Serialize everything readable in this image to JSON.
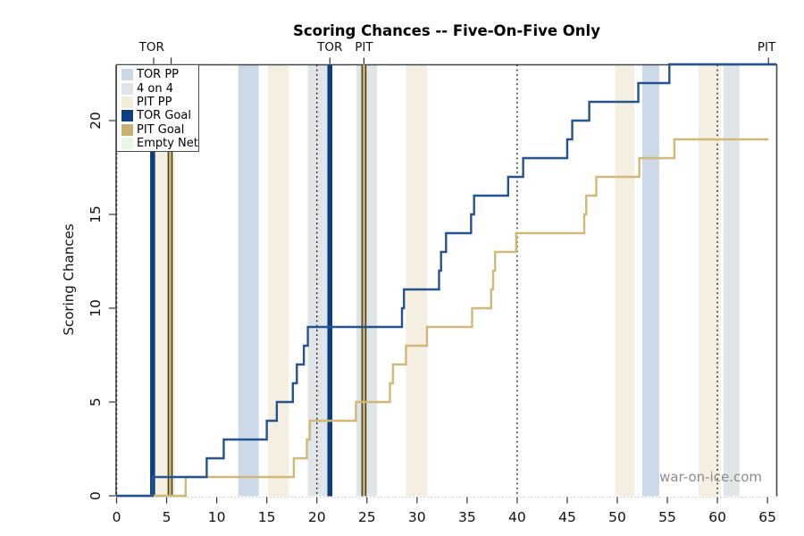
{
  "title": "Scoring Chances -- Five-On-Five Only",
  "watermark": "war-on-ice.com",
  "legend": {
    "items": [
      {
        "label": "TOR PP",
        "color": "#c9d7e8"
      },
      {
        "label": "4 on 4",
        "color": "#dfe4e8"
      },
      {
        "label": "PIT PP",
        "color": "#f2ecda"
      },
      {
        "label": "TOR Goal",
        "color": "#0e3f7f"
      },
      {
        "label": "PIT Goal",
        "color": "#c7b175"
      },
      {
        "label": "Empty Net",
        "color": "#e6f9e6"
      }
    ]
  },
  "chart_data": {
    "type": "line",
    "subtype": "step",
    "title": "Scoring Chances -- Five-On-Five Only",
    "xlabel": "",
    "ylabel": "Scoring Chances",
    "x_ticks": [
      0,
      5,
      10,
      15,
      20,
      25,
      30,
      35,
      40,
      45,
      50,
      55,
      60,
      65
    ],
    "y_ticks": [
      0,
      5,
      10,
      15,
      20
    ],
    "xlim": [
      0,
      66
    ],
    "ylim": [
      0,
      23
    ],
    "grid": false,
    "legend_position": "top-left",
    "series": [
      {
        "name": "PIT",
        "color": "#d2b878",
        "final": 19,
        "start": [
          0,
          0
        ],
        "end_x": 65.1,
        "steps": [
          [
            6.9,
            1
          ],
          [
            17.7,
            2
          ],
          [
            19.0,
            3
          ],
          [
            19.3,
            4
          ],
          [
            23.9,
            5
          ],
          [
            27.3,
            6
          ],
          [
            27.6,
            7
          ],
          [
            28.9,
            8
          ],
          [
            31.0,
            9
          ],
          [
            35.5,
            10
          ],
          [
            37.4,
            11
          ],
          [
            37.6,
            12
          ],
          [
            37.8,
            13
          ],
          [
            39.9,
            14
          ],
          [
            46.7,
            15
          ],
          [
            46.9,
            16
          ],
          [
            47.9,
            17
          ],
          [
            52.2,
            18
          ],
          [
            55.7,
            19
          ]
        ]
      },
      {
        "name": "TOR",
        "color": "#24538f",
        "final": 23,
        "start": [
          0,
          0
        ],
        "end_x": 65.9,
        "steps": [
          [
            3.6,
            1
          ],
          [
            9.0,
            2
          ],
          [
            10.7,
            3
          ],
          [
            15.0,
            4
          ],
          [
            16.0,
            5
          ],
          [
            17.6,
            6
          ],
          [
            18.0,
            7
          ],
          [
            18.7,
            8
          ],
          [
            19.1,
            9
          ],
          [
            28.5,
            10
          ],
          [
            28.7,
            11
          ],
          [
            32.2,
            12
          ],
          [
            32.4,
            13
          ],
          [
            32.9,
            14
          ],
          [
            35.4,
            15
          ],
          [
            35.7,
            16
          ],
          [
            39.1,
            17
          ],
          [
            40.6,
            18
          ],
          [
            45.0,
            19
          ],
          [
            45.5,
            20
          ],
          [
            47.2,
            21
          ],
          [
            52.1,
            22
          ],
          [
            55.2,
            23
          ]
        ]
      }
    ],
    "bands": [
      {
        "kind": "PIT PP",
        "x0": 3.85,
        "x1": 5.85
      },
      {
        "kind": "TOR PP",
        "x0": 12.15,
        "x1": 14.2
      },
      {
        "kind": "PIT PP",
        "x0": 15.1,
        "x1": 17.2
      },
      {
        "kind": "4 on 4",
        "x0": 19.1,
        "x1": 21.2
      },
      {
        "kind": "4 on 4",
        "x0": 23.95,
        "x1": 26.0
      },
      {
        "kind": "PIT PP",
        "x0": 28.9,
        "x1": 31.0
      },
      {
        "kind": "PIT PP",
        "x0": 49.8,
        "x1": 51.7
      },
      {
        "kind": "TOR PP",
        "x0": 52.5,
        "x1": 54.2
      },
      {
        "kind": "PIT PP",
        "x0": 58.1,
        "x1": 60.3
      },
      {
        "kind": "4 on 4",
        "x0": 60.6,
        "x1": 62.2
      }
    ],
    "band_colors": {
      "TOR PP": "#ccd9e9",
      "4 on 4": "#e0e5e8",
      "PIT PP": "#f4efe0",
      "Empty Net": "#e6f9e6"
    },
    "goals": [
      {
        "team": "TOR",
        "x": 3.6
      },
      {
        "team": "PIT",
        "x": 5.35
      },
      {
        "team": "TOR",
        "x": 21.3
      },
      {
        "team": "PIT",
        "x": 24.7
      }
    ],
    "goal_colors": {
      "TOR": "#0d3d7c",
      "PIT": "#c5ae6c",
      "PIT_edge": "#3a351f"
    },
    "period_lines": [
      0,
      20,
      40,
      60
    ],
    "top_markers": {
      "ticks": [
        3.7,
        5.45,
        21.3,
        24.7,
        65.1
      ],
      "labels": [
        {
          "text": "TOR",
          "x": 3.5
        },
        {
          "text": "TOR",
          "x": 21.3
        },
        {
          "text": "PIT",
          "x": 24.7
        },
        {
          "text": "PIT",
          "x": 64.9
        }
      ]
    }
  }
}
